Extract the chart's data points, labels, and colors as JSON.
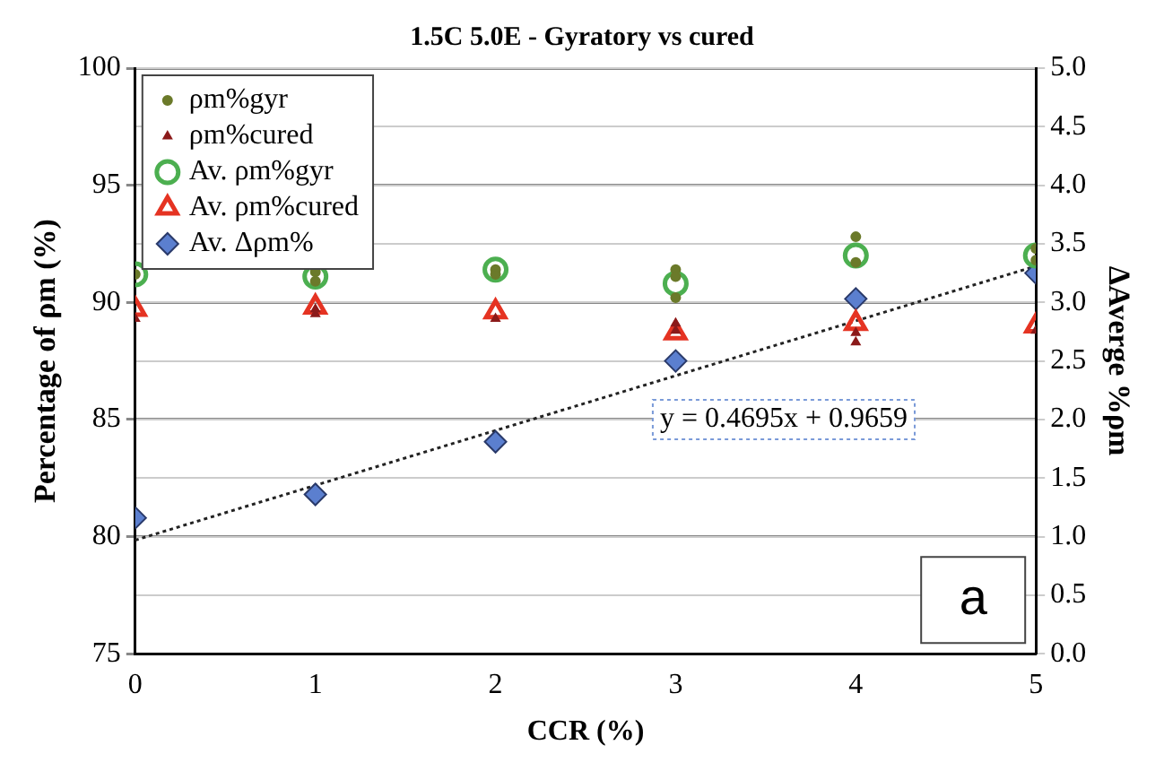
{
  "chart_data": {
    "type": "scatter",
    "title": "1.5C 5.0E - Gyratory vs cured",
    "xlabel": "CCR (%)",
    "ylabel": "Percentage of ρm (%)",
    "y2label": "ΔAverge %ρm",
    "xlim": [
      0,
      5
    ],
    "xticks": [
      0,
      1,
      2,
      3,
      4,
      5
    ],
    "ylim": [
      75,
      100
    ],
    "yticks": [
      75,
      80,
      85,
      90,
      95,
      100
    ],
    "y2lim": [
      0,
      5
    ],
    "y2ticks": [
      {
        "value": 0,
        "label": "0.0"
      },
      0.5,
      {
        "value": 1,
        "label": "1.0"
      },
      1.5,
      {
        "value": 2,
        "label": "2.0"
      },
      2.5,
      {
        "value": 3,
        "label": "3.0"
      },
      3.5,
      {
        "value": 4,
        "label": "4.0"
      },
      4.5,
      {
        "value": 5,
        "label": "5.0"
      }
    ],
    "grid": "y",
    "legend": "top left",
    "series": [
      {
        "name": "ρm%gyr",
        "type": "scatter",
        "marker": "circle",
        "color": "#6b7a2a",
        "x": [
          0,
          1,
          1,
          2,
          2,
          3,
          3,
          3,
          4,
          4,
          5,
          5
        ],
        "values": [
          91.2,
          91.3,
          90.9,
          91.4,
          91.2,
          91.4,
          91.1,
          90.2,
          92.8,
          91.7,
          92.3,
          91.8
        ]
      },
      {
        "name": "ρm%cured",
        "type": "scatter",
        "marker": "triangle",
        "color": "#8b1a1a",
        "x": [
          0,
          1,
          1,
          2,
          3,
          3,
          4,
          4,
          5
        ],
        "values": [
          89.3,
          89.7,
          89.5,
          89.3,
          89.1,
          88.8,
          88.7,
          88.3,
          88.8
        ]
      },
      {
        "name": "Av. ρm%gyr",
        "type": "scatter",
        "marker": "circle",
        "color": "#4caf50",
        "x": [
          0,
          1,
          2,
          3,
          4,
          5
        ],
        "values": [
          91.2,
          91.1,
          91.4,
          90.8,
          92.0,
          92.0
        ]
      },
      {
        "name": "Av. ρm%cured",
        "type": "scatter",
        "marker": "triangle",
        "color": "#e53322",
        "x": [
          0,
          1,
          2,
          3,
          4,
          5
        ],
        "values": [
          89.7,
          89.8,
          89.6,
          88.7,
          89.1,
          89.0
        ]
      },
      {
        "name": "Av. Δρm%",
        "type": "scatter",
        "marker": "diamond",
        "axis": "y2",
        "color": "#5b7fcf",
        "x": [
          0,
          1,
          2,
          3,
          4,
          5
        ],
        "values": [
          1.16,
          1.36,
          1.81,
          2.5,
          3.03,
          3.25
        ]
      },
      {
        "type": "line",
        "axis": "y2",
        "marker": "none",
        "line_style": "dotted",
        "color": "#222222",
        "x": [
          0,
          5
        ],
        "values": [
          0.97,
          3.31
        ]
      }
    ],
    "annotations": [
      "y = 0.4695x + 0.9659",
      "a"
    ]
  }
}
